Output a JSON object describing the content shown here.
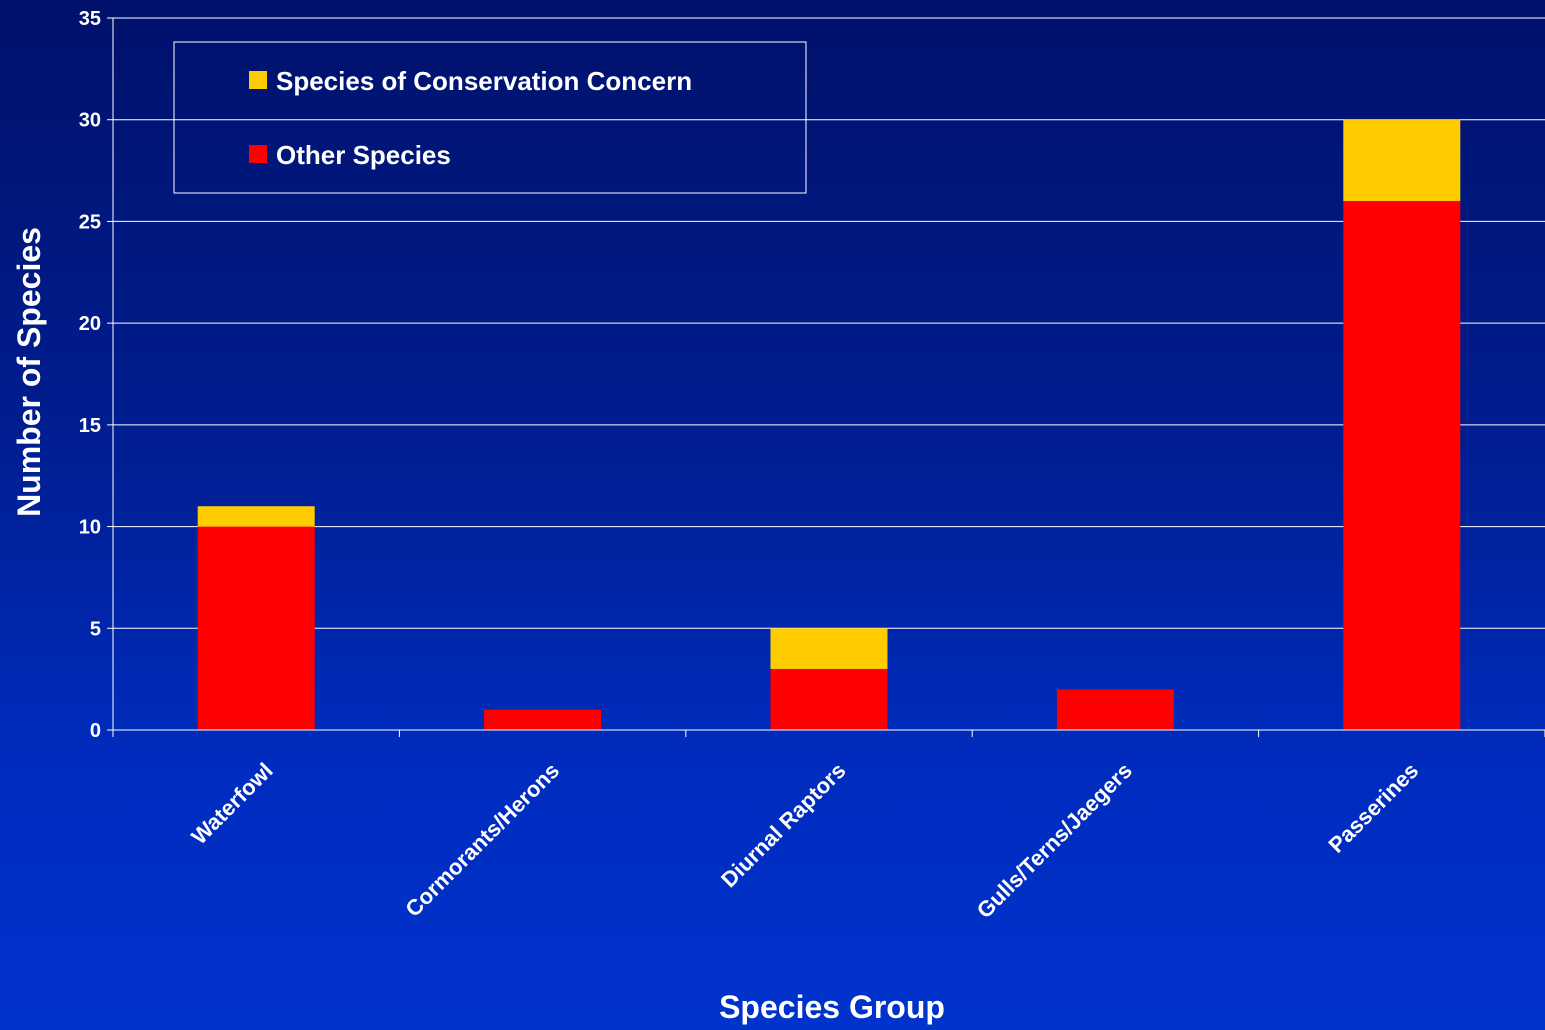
{
  "chart_data": {
    "type": "bar",
    "stacked": true,
    "categories": [
      "Waterfowl",
      "Cormorants/Herons",
      "Diurnal Raptors",
      "Gulls/Terns/Jaegers",
      "Passerines"
    ],
    "series": [
      {
        "name": "Other Species",
        "values": [
          10,
          1,
          3,
          2,
          26
        ],
        "color": "#ff0000"
      },
      {
        "name": "Species of Conservation Concern",
        "values": [
          1,
          0,
          2,
          0,
          4
        ],
        "color": "#ffcc00"
      }
    ],
    "xlabel": "Species Group",
    "ylabel": "Number of Species",
    "ylim": [
      0,
      35
    ],
    "yticks": [
      0,
      5,
      10,
      15,
      20,
      25,
      30,
      35
    ],
    "grid": true,
    "legend": {
      "placement": "top-left",
      "order": [
        "Species of Conservation Concern",
        "Other Species"
      ]
    }
  }
}
